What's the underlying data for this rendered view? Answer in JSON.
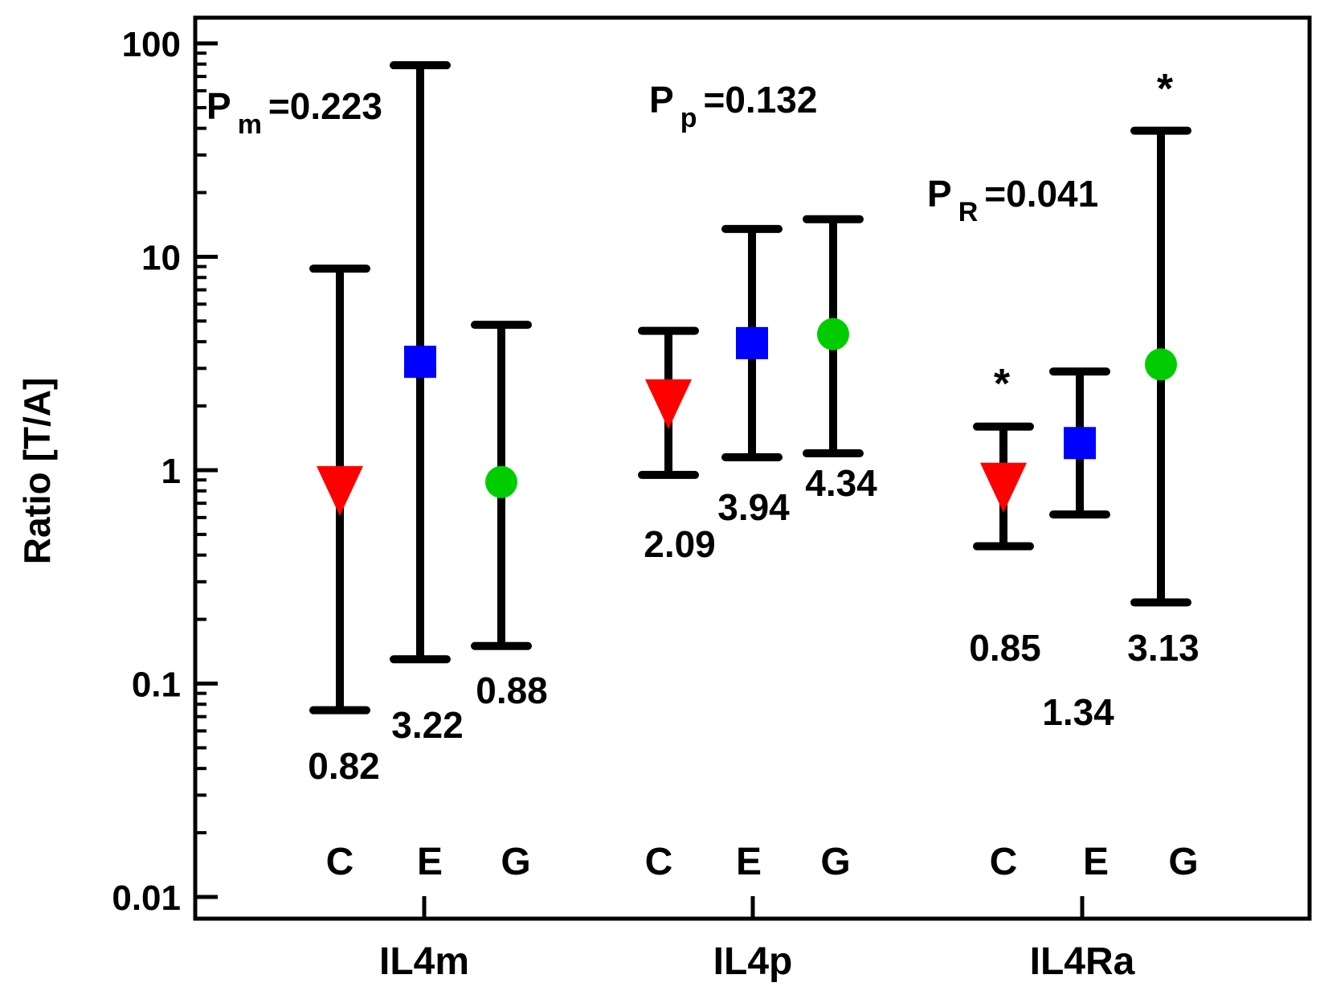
{
  "chart_data": {
    "type": "scatter",
    "ylabel": "Ratio [T/A]",
    "yscale": "log",
    "ylim": [
      0.01,
      100
    ],
    "yticks": [
      {
        "value": 0.01,
        "label": "0.01"
      },
      {
        "value": 0.1,
        "label": "0.1"
      },
      {
        "value": 1,
        "label": "1"
      },
      {
        "value": 10,
        "label": "10"
      },
      {
        "value": 100,
        "label": "100"
      }
    ],
    "groups": [
      "IL4m",
      "IL4p",
      "IL4Ra"
    ],
    "series": [
      {
        "key": "C",
        "marker": "triangle-down",
        "color": "#ff0000",
        "values": [
          0.82,
          2.09,
          0.85
        ],
        "lower": [
          0.075,
          0.95,
          0.44
        ],
        "upper": [
          8.8,
          4.5,
          1.6
        ]
      },
      {
        "key": "E",
        "marker": "square",
        "color": "#0000ff",
        "values": [
          3.22,
          3.94,
          1.34
        ],
        "lower": [
          0.13,
          1.15,
          0.62
        ],
        "upper": [
          79,
          13.5,
          2.9
        ]
      },
      {
        "key": "G",
        "marker": "circle",
        "color": "#00cc00",
        "values": [
          0.88,
          4.34,
          3.13
        ],
        "lower": [
          0.15,
          1.2,
          0.24
        ],
        "upper": [
          4.8,
          15,
          39
        ]
      }
    ],
    "value_labels": [
      [
        "0.82",
        "2.09",
        "0.85"
      ],
      [
        "3.22",
        "3.94",
        "1.34"
      ],
      [
        "0.88",
        "4.34",
        "3.13"
      ]
    ],
    "p_values": [
      {
        "main": "P",
        "sub": "m",
        "text": "=0.223"
      },
      {
        "main": "P",
        "sub": "p",
        "text": "=0.132"
      },
      {
        "main": "P",
        "sub": "R",
        "text": "=0.041"
      }
    ],
    "annotations": [
      "*",
      "*"
    ],
    "grid": false,
    "legend": "none"
  }
}
